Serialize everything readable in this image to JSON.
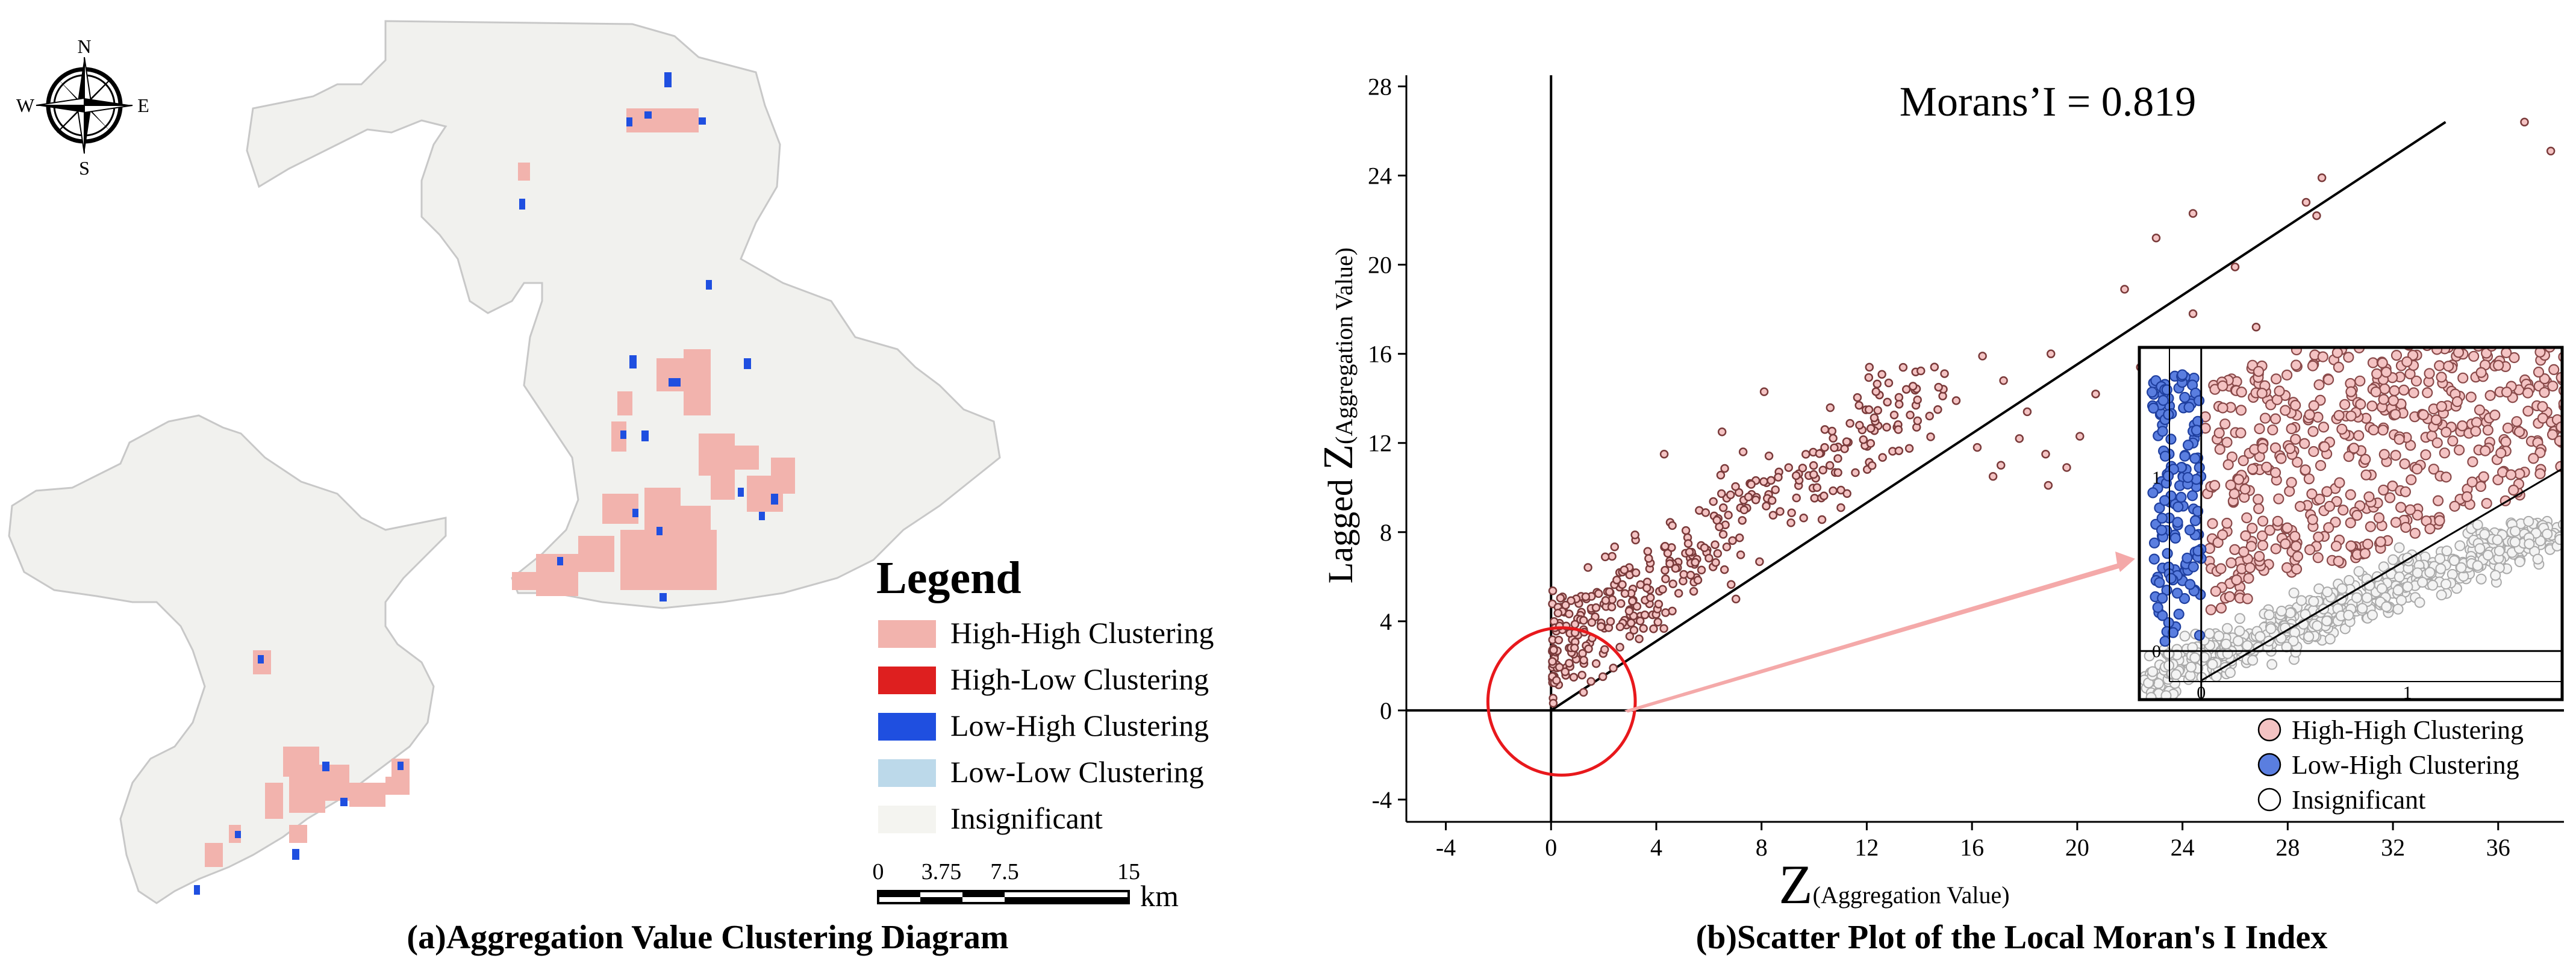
{
  "panel_a": {
    "caption": "(a)Aggregation Value Clustering Diagram",
    "compass": {
      "north": "N",
      "south": "S",
      "east": "E",
      "west": "W"
    },
    "legend": {
      "title": "Legend",
      "items": [
        {
          "label": "High-High Clustering",
          "color": "#f2b3ad"
        },
        {
          "label": "High-Low Clustering",
          "color": "#de1f1f"
        },
        {
          "label": "Low-High Clustering",
          "color": "#1f4fe0"
        },
        {
          "label": "Low-Low Clustering",
          "color": "#bcd9ea"
        },
        {
          "label": "Insignificant",
          "color": "#f4f4f0"
        }
      ]
    },
    "scale_bar": {
      "ticks": [
        "0",
        "3.75",
        "7.5",
        "15"
      ],
      "unit": "km"
    },
    "map_fill": "#f1f1ee",
    "map_stroke": "#c8c8c8"
  },
  "chart_data": {
    "type": "scatter",
    "caption": "(b)Scatter Plot of the Local Moran's I Index",
    "title": "Morans’I = 0.819",
    "morans_i": 0.819,
    "xlabel_main": "Z",
    "xlabel_sub": "(Aggregation Value)",
    "ylabel_prefix": "Lagged",
    "ylabel_main": "Z",
    "ylabel_sub": "(Aggregation Value)",
    "xlim": [
      -5.5,
      38.5
    ],
    "ylim": [
      -5,
      28.5
    ],
    "xticks": [
      -4,
      0,
      4,
      8,
      12,
      16,
      20,
      24,
      28,
      32,
      36
    ],
    "yticks": [
      -4,
      0,
      4,
      8,
      12,
      16,
      20,
      24,
      28
    ],
    "regression_line": {
      "x1": 0,
      "y1": 0,
      "x2": 34,
      "y2": 26.4
    },
    "highlight_circle": {
      "center": [
        0.4,
        0.4
      ],
      "radius_x": 2.8
    },
    "series": [
      {
        "name": "High-High Clustering",
        "color": "#f4c3c3",
        "edge": "#7a3a3a"
      },
      {
        "name": "Low-High Clustering",
        "color": "#5a7ee0",
        "edge": "#1f3f9f"
      },
      {
        "name": "Insignificant",
        "color": "#ffffff",
        "edge": "#555555"
      }
    ],
    "outliers": [
      [
        37.0,
        26.4
      ],
      [
        38.0,
        25.1
      ],
      [
        29.3,
        23.9
      ],
      [
        28.7,
        22.8
      ],
      [
        29.1,
        22.2
      ],
      [
        24.4,
        22.3
      ],
      [
        23.0,
        21.2
      ],
      [
        21.8,
        18.9
      ],
      [
        26.0,
        19.9
      ],
      [
        24.4,
        17.8
      ],
      [
        26.8,
        17.2
      ],
      [
        19.0,
        16.0
      ],
      [
        16.4,
        15.9
      ],
      [
        22.4,
        15.4
      ],
      [
        12.1,
        15.4
      ],
      [
        17.2,
        14.8
      ],
      [
        8.1,
        14.3
      ],
      [
        15.4,
        13.9
      ],
      [
        20.7,
        14.2
      ],
      [
        22.5,
        14.0
      ],
      [
        18.1,
        13.4
      ],
      [
        14.7,
        13.5
      ],
      [
        13.2,
        12.6
      ],
      [
        17.8,
        12.2
      ],
      [
        6.5,
        12.5
      ],
      [
        20.1,
        12.3
      ],
      [
        16.2,
        11.8
      ],
      [
        18.8,
        11.5
      ],
      [
        4.3,
        11.5
      ],
      [
        19.6,
        10.9
      ],
      [
        17.1,
        11.0
      ],
      [
        16.8,
        10.5
      ],
      [
        18.9,
        10.1
      ],
      [
        7.3,
        11.6
      ],
      [
        10.4,
        11.8
      ]
    ],
    "inset": {
      "xlim": [
        -0.3,
        1.75
      ],
      "ylim": [
        -0.28,
        1.75
      ],
      "xticks": [
        0,
        1
      ],
      "yticks": [
        0,
        1
      ],
      "regression_line": {
        "x1": 0,
        "y1": -0.17,
        "x2": 1.75,
        "y2": 1.05
      }
    }
  }
}
